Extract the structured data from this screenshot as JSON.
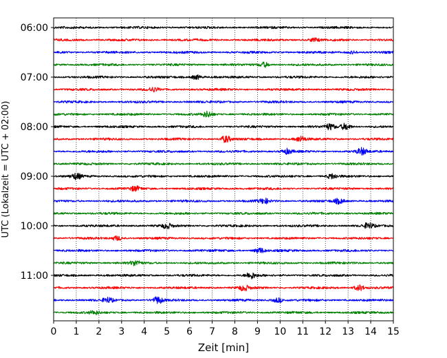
{
  "chart_data": {
    "type": "line",
    "subtype": "helicorder",
    "title": "",
    "xlabel": "Zeit  [min]",
    "ylabel": "UTC (Lokalzeit = UTC + 02:00)",
    "xlim": [
      0,
      15
    ],
    "x_ticks": [
      "0",
      "1",
      "2",
      "3",
      "4",
      "5",
      "6",
      "7",
      "8",
      "9",
      "10",
      "11",
      "12",
      "13",
      "14",
      "15"
    ],
    "x_grid": true,
    "x_grid_style": "dotted",
    "y_tick_labels": [
      "06:00",
      "07:00",
      "08:00",
      "09:00",
      "10:00",
      "11:00"
    ],
    "trace_count": 24,
    "trace_start": "06:00",
    "trace_minutes": 15,
    "trace_colors": [
      "#000000",
      "#ff0000",
      "#0000ff",
      "#008000"
    ],
    "bursts": [
      {
        "trace": 1,
        "minute": 11.5,
        "amplitude": 2.2
      },
      {
        "trace": 2,
        "minute": 13.2,
        "amplitude": 1.6
      },
      {
        "trace": 3,
        "minute": 9.3,
        "amplitude": 3.2
      },
      {
        "trace": 4,
        "minute": 6.3,
        "amplitude": 3.0
      },
      {
        "trace": 5,
        "minute": 4.4,
        "amplitude": 2.5
      },
      {
        "trace": 7,
        "minute": 6.8,
        "amplitude": 3.8
      },
      {
        "trace": 8,
        "minute": 12.2,
        "amplitude": 3.8
      },
      {
        "trace": 8,
        "minute": 12.9,
        "amplitude": 4.5
      },
      {
        "trace": 9,
        "minute": 7.6,
        "amplitude": 4.5
      },
      {
        "trace": 9,
        "minute": 10.9,
        "amplitude": 3.5
      },
      {
        "trace": 10,
        "minute": 10.3,
        "amplitude": 3.3
      },
      {
        "trace": 10,
        "minute": 13.6,
        "amplitude": 4.5
      },
      {
        "trace": 12,
        "minute": 1.0,
        "amplitude": 3.8
      },
      {
        "trace": 12,
        "minute": 12.3,
        "amplitude": 3.4
      },
      {
        "trace": 13,
        "minute": 3.6,
        "amplitude": 3.0
      },
      {
        "trace": 14,
        "minute": 9.3,
        "amplitude": 3.2
      },
      {
        "trace": 14,
        "minute": 12.6,
        "amplitude": 3.2
      },
      {
        "trace": 16,
        "minute": 5.0,
        "amplitude": 3.2
      },
      {
        "trace": 16,
        "minute": 13.9,
        "amplitude": 3.8
      },
      {
        "trace": 17,
        "minute": 2.8,
        "amplitude": 3.0
      },
      {
        "trace": 18,
        "minute": 9.1,
        "amplitude": 3.6
      },
      {
        "trace": 19,
        "minute": 3.6,
        "amplitude": 3.2
      },
      {
        "trace": 20,
        "minute": 8.7,
        "amplitude": 4.2
      },
      {
        "trace": 21,
        "minute": 8.4,
        "amplitude": 3.6
      },
      {
        "trace": 21,
        "minute": 13.5,
        "amplitude": 3.8
      },
      {
        "trace": 22,
        "minute": 2.4,
        "amplitude": 3.2
      },
      {
        "trace": 22,
        "minute": 4.6,
        "amplitude": 4.5
      },
      {
        "trace": 22,
        "minute": 9.9,
        "amplitude": 3.0
      },
      {
        "trace": 23,
        "minute": 1.8,
        "amplitude": 2.2
      }
    ]
  }
}
